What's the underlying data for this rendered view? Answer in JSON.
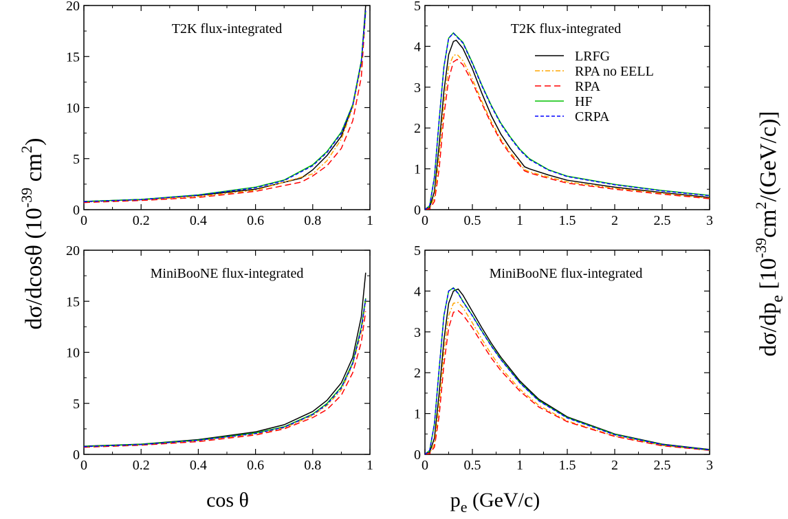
{
  "figure": {
    "xlabel_left": "cos θ",
    "xlabel_right": "p_e (GeV/c)",
    "ylabel_left": "dσ/dcosθ (10^-39 cm^2)",
    "ylabel_right": "dσ/dp_e [10^-39 cm^2/(GeV/c)]"
  },
  "series_styles": [
    {
      "name": "LRFG",
      "color": "#000000",
      "dash": ""
    },
    {
      "name": "RPA no EELL",
      "color": "#FFA500",
      "dash": "7,3,2,3"
    },
    {
      "name": "RPA",
      "color": "#FF0000",
      "dash": "9,5"
    },
    {
      "name": "HF",
      "color": "#00C000",
      "dash": ""
    },
    {
      "name": "CRPA",
      "color": "#0000FF",
      "dash": "5,3"
    }
  ],
  "chart_data": [
    {
      "type": "line",
      "title": "T2K flux-integrated",
      "xlim": [
        0,
        1
      ],
      "ylim": [
        0,
        20
      ],
      "xticks": [
        "0",
        "0.2",
        "0.4",
        "0.6",
        "0.8",
        "1"
      ],
      "yticks": [
        "0",
        "5",
        "10",
        "15",
        "20"
      ],
      "series": [
        {
          "name": "LRFG",
          "x": [
            0,
            0.2,
            0.4,
            0.6,
            0.76,
            0.8,
            0.85,
            0.9,
            0.94,
            0.97,
            0.985
          ],
          "y": [
            0.8,
            1.0,
            1.4,
            2.0,
            3.1,
            3.9,
            5.3,
            7.2,
            10.2,
            14.5,
            20
          ]
        },
        {
          "name": "RPA no EELL",
          "x": [
            0,
            0.2,
            0.4,
            0.6,
            0.8,
            0.85,
            0.9,
            0.94,
            0.97,
            0.985
          ],
          "y": [
            0.75,
            0.95,
            1.3,
            1.9,
            3.5,
            4.8,
            6.9,
            10.0,
            14.2,
            19.5
          ]
        },
        {
          "name": "RPA",
          "x": [
            0,
            0.2,
            0.4,
            0.6,
            0.76,
            0.8,
            0.85,
            0.9,
            0.94,
            0.97,
            0.985
          ],
          "y": [
            0.7,
            0.9,
            1.2,
            1.8,
            2.7,
            3.3,
            4.3,
            6.0,
            8.7,
            13.0,
            19.5
          ]
        },
        {
          "name": "HF",
          "x": [
            0,
            0.2,
            0.4,
            0.6,
            0.7,
            0.8,
            0.85,
            0.9,
            0.94,
            0.97,
            0.985
          ],
          "y": [
            0.8,
            1.0,
            1.45,
            2.2,
            2.9,
            4.4,
            5.7,
            7.6,
            10.3,
            14.6,
            19.5
          ]
        },
        {
          "name": "CRPA",
          "x": [
            0,
            0.2,
            0.4,
            0.6,
            0.7,
            0.8,
            0.85,
            0.9,
            0.94,
            0.97,
            0.985
          ],
          "y": [
            0.78,
            0.98,
            1.42,
            2.15,
            2.85,
            4.3,
            5.6,
            7.5,
            10.2,
            14.5,
            19.5
          ]
        }
      ]
    },
    {
      "type": "line",
      "title": "T2K flux-integrated",
      "xlim": [
        0,
        3
      ],
      "ylim": [
        0,
        5
      ],
      "xticks": [
        "0",
        "0.5",
        "1",
        "1.5",
        "2",
        "2.5",
        "3"
      ],
      "yticks": [
        "0",
        "1",
        "2",
        "3",
        "4",
        "5"
      ],
      "legend": "top-right",
      "series": [
        {
          "name": "LRFG",
          "x": [
            0,
            0.05,
            0.1,
            0.15,
            0.2,
            0.25,
            0.3,
            0.33,
            0.4,
            0.5,
            0.6,
            0.7,
            0.8,
            0.9,
            1.0,
            1.05,
            1.1,
            1.3,
            1.5,
            2.0,
            2.5,
            3.0
          ],
          "y": [
            0,
            0.05,
            0.45,
            1.6,
            2.9,
            3.8,
            4.12,
            4.15,
            3.95,
            3.45,
            2.85,
            2.3,
            1.85,
            1.5,
            1.2,
            1.05,
            1.0,
            0.85,
            0.72,
            0.55,
            0.42,
            0.3
          ]
        },
        {
          "name": "RPA no EELL",
          "x": [
            0,
            0.05,
            0.1,
            0.15,
            0.2,
            0.25,
            0.3,
            0.34,
            0.4,
            0.5,
            0.6,
            0.7,
            0.8,
            0.9,
            1.0,
            1.05,
            1.1,
            1.3,
            1.5,
            2.0,
            2.5,
            3.0
          ],
          "y": [
            0,
            0.03,
            0.3,
            1.3,
            2.6,
            3.5,
            3.78,
            3.8,
            3.65,
            3.2,
            2.65,
            2.15,
            1.72,
            1.4,
            1.12,
            0.98,
            0.93,
            0.8,
            0.68,
            0.52,
            0.4,
            0.28
          ]
        },
        {
          "name": "RPA",
          "x": [
            0,
            0.05,
            0.1,
            0.15,
            0.2,
            0.25,
            0.3,
            0.34,
            0.4,
            0.5,
            0.6,
            0.7,
            0.8,
            0.9,
            1.0,
            1.05,
            1.1,
            1.3,
            1.5,
            2.0,
            2.5,
            3.0
          ],
          "y": [
            0,
            0.02,
            0.2,
            1.0,
            2.3,
            3.2,
            3.62,
            3.68,
            3.55,
            3.12,
            2.6,
            2.1,
            1.68,
            1.35,
            1.08,
            0.95,
            0.9,
            0.77,
            0.65,
            0.5,
            0.38,
            0.27
          ]
        },
        {
          "name": "HF",
          "x": [
            0,
            0.05,
            0.1,
            0.15,
            0.2,
            0.25,
            0.3,
            0.4,
            0.5,
            0.6,
            0.7,
            0.8,
            0.9,
            1.0,
            1.1,
            1.3,
            1.5,
            2.0,
            2.5,
            3.0
          ],
          "y": [
            0,
            0.1,
            0.8,
            2.2,
            3.5,
            4.2,
            4.33,
            4.1,
            3.6,
            3.05,
            2.55,
            2.12,
            1.78,
            1.48,
            1.25,
            0.98,
            0.82,
            0.62,
            0.47,
            0.35
          ]
        },
        {
          "name": "CRPA",
          "x": [
            0,
            0.05,
            0.1,
            0.15,
            0.2,
            0.25,
            0.3,
            0.4,
            0.5,
            0.6,
            0.7,
            0.8,
            0.9,
            1.0,
            1.1,
            1.3,
            1.5,
            2.0,
            2.5,
            3.0
          ],
          "y": [
            0,
            0.1,
            0.8,
            2.2,
            3.5,
            4.2,
            4.32,
            4.08,
            3.58,
            3.03,
            2.53,
            2.1,
            1.76,
            1.46,
            1.23,
            0.97,
            0.81,
            0.61,
            0.46,
            0.34
          ]
        }
      ]
    },
    {
      "type": "line",
      "title": "MiniBooNE flux-integrated",
      "xlim": [
        0,
        1
      ],
      "ylim": [
        0,
        20
      ],
      "xticks": [
        "0",
        "0.2",
        "0.4",
        "0.6",
        "0.8",
        "1"
      ],
      "yticks": [
        "0",
        "5",
        "10",
        "15",
        "20"
      ],
      "series": [
        {
          "name": "LRFG",
          "x": [
            0,
            0.2,
            0.4,
            0.6,
            0.7,
            0.8,
            0.85,
            0.9,
            0.94,
            0.97,
            0.985
          ],
          "y": [
            0.8,
            1.0,
            1.45,
            2.2,
            2.9,
            4.2,
            5.3,
            7.0,
            9.5,
            13.5,
            17.8
          ]
        },
        {
          "name": "RPA no EELL",
          "x": [
            0,
            0.2,
            0.4,
            0.6,
            0.7,
            0.8,
            0.85,
            0.9,
            0.94,
            0.97,
            0.985
          ],
          "y": [
            0.75,
            0.95,
            1.35,
            2.0,
            2.6,
            3.8,
            4.8,
            6.3,
            8.8,
            12.0,
            15.0
          ]
        },
        {
          "name": "RPA",
          "x": [
            0,
            0.2,
            0.4,
            0.6,
            0.7,
            0.8,
            0.85,
            0.9,
            0.94,
            0.97,
            0.985
          ],
          "y": [
            0.7,
            0.9,
            1.25,
            1.9,
            2.5,
            3.6,
            4.4,
            5.8,
            8.0,
            11.0,
            14.0
          ]
        },
        {
          "name": "HF",
          "x": [
            0,
            0.2,
            0.4,
            0.6,
            0.7,
            0.8,
            0.85,
            0.9,
            0.94,
            0.97,
            0.985
          ],
          "y": [
            0.78,
            0.98,
            1.4,
            2.1,
            2.7,
            3.95,
            5.0,
            6.6,
            9.0,
            12.5,
            15.3
          ]
        },
        {
          "name": "CRPA",
          "x": [
            0,
            0.2,
            0.4,
            0.6,
            0.7,
            0.8,
            0.85,
            0.9,
            0.94,
            0.97,
            0.985
          ],
          "y": [
            0.76,
            0.96,
            1.38,
            2.05,
            2.65,
            3.9,
            4.9,
            6.5,
            8.9,
            12.3,
            15.2
          ]
        }
      ]
    },
    {
      "type": "line",
      "title": "MiniBooNE flux-integrated",
      "xlim": [
        0,
        3
      ],
      "ylim": [
        0,
        5
      ],
      "xticks": [
        "0",
        "0.5",
        "1",
        "1.5",
        "2",
        "2.5",
        "3"
      ],
      "yticks": [
        "0",
        "1",
        "2",
        "3",
        "4",
        "5"
      ],
      "series": [
        {
          "name": "LRFG",
          "x": [
            0,
            0.05,
            0.1,
            0.15,
            0.2,
            0.25,
            0.3,
            0.35,
            0.4,
            0.5,
            0.6,
            0.7,
            0.8,
            1.0,
            1.2,
            1.5,
            2.0,
            2.5,
            3.0
          ],
          "y": [
            0,
            0.05,
            0.4,
            1.5,
            2.8,
            3.7,
            4.0,
            4.05,
            3.9,
            3.5,
            3.1,
            2.72,
            2.38,
            1.8,
            1.35,
            0.92,
            0.5,
            0.25,
            0.12
          ]
        },
        {
          "name": "RPA no EELL",
          "x": [
            0,
            0.05,
            0.1,
            0.15,
            0.2,
            0.25,
            0.3,
            0.35,
            0.4,
            0.5,
            0.6,
            0.7,
            0.8,
            1.0,
            1.2,
            1.5,
            2.0,
            2.5,
            3.0
          ],
          "y": [
            0,
            0.03,
            0.25,
            1.2,
            2.5,
            3.4,
            3.7,
            3.72,
            3.6,
            3.22,
            2.82,
            2.45,
            2.12,
            1.6,
            1.2,
            0.82,
            0.45,
            0.22,
            0.1
          ]
        },
        {
          "name": "RPA",
          "x": [
            0,
            0.05,
            0.1,
            0.15,
            0.2,
            0.25,
            0.3,
            0.35,
            0.4,
            0.5,
            0.6,
            0.7,
            0.8,
            1.0,
            1.2,
            1.5,
            2.0,
            2.5,
            3.0
          ],
          "y": [
            0,
            0.02,
            0.18,
            0.95,
            2.2,
            3.1,
            3.48,
            3.52,
            3.42,
            3.1,
            2.72,
            2.36,
            2.05,
            1.55,
            1.16,
            0.8,
            0.44,
            0.21,
            0.1
          ]
        },
        {
          "name": "HF",
          "x": [
            0,
            0.05,
            0.1,
            0.15,
            0.2,
            0.25,
            0.3,
            0.35,
            0.4,
            0.5,
            0.6,
            0.7,
            0.8,
            1.0,
            1.2,
            1.5,
            2.0,
            2.5,
            3.0
          ],
          "y": [
            0,
            0.1,
            0.75,
            2.1,
            3.4,
            4.0,
            4.08,
            3.95,
            3.75,
            3.4,
            3.02,
            2.66,
            2.33,
            1.76,
            1.32,
            0.9,
            0.49,
            0.24,
            0.11
          ]
        },
        {
          "name": "CRPA",
          "x": [
            0,
            0.05,
            0.1,
            0.15,
            0.2,
            0.25,
            0.3,
            0.35,
            0.4,
            0.5,
            0.6,
            0.7,
            0.8,
            1.0,
            1.2,
            1.5,
            2.0,
            2.5,
            3.0
          ],
          "y": [
            0,
            0.1,
            0.75,
            2.1,
            3.4,
            4.0,
            4.07,
            3.94,
            3.74,
            3.39,
            3.01,
            2.65,
            2.32,
            1.75,
            1.31,
            0.89,
            0.48,
            0.24,
            0.11
          ]
        }
      ]
    }
  ]
}
